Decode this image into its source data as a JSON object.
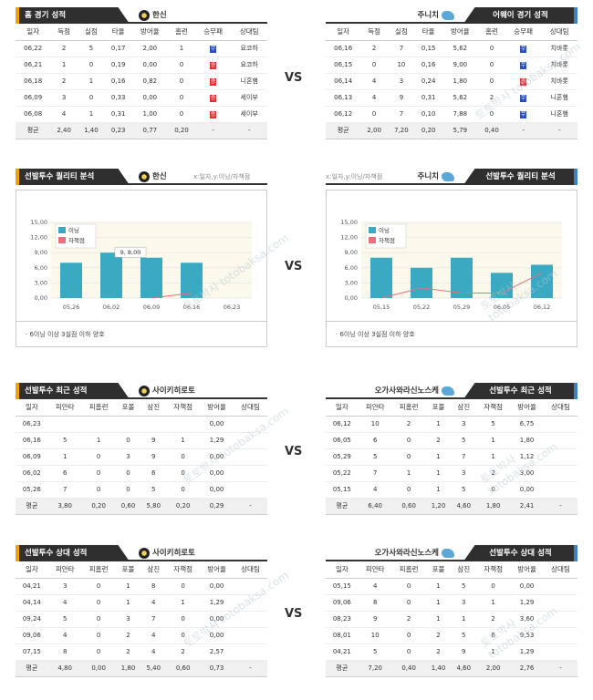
{
  "vs_label": "VS",
  "home_record": {
    "title": "홈 경기 성적",
    "team": "한신",
    "headers": [
      "일자",
      "득점",
      "실점",
      "타율",
      "방어율",
      "홈런",
      "승무패",
      "상대팀"
    ],
    "rows": [
      [
        "06,22",
        "2",
        "5",
        "0,17",
        "2,00",
        "1",
        "무",
        "요코하"
      ],
      [
        "06,21",
        "1",
        "0",
        "0,19",
        "0,00",
        "0",
        "승",
        "요코하"
      ],
      [
        "06,18",
        "2",
        "1",
        "0,16",
        "0,82",
        "0",
        "승",
        "니혼햄"
      ],
      [
        "06,09",
        "3",
        "0",
        "0,33",
        "0,00",
        "0",
        "승",
        "세이부"
      ],
      [
        "06,08",
        "4",
        "1",
        "0,31",
        "1,00",
        "0",
        "승",
        "세이부"
      ]
    ],
    "avg": [
      "평균",
      "2,40",
      "1,40",
      "0,23",
      "0,77",
      "0,20",
      "-",
      "-"
    ]
  },
  "away_record": {
    "title": "어웨이 경기 성적",
    "team": "주니치",
    "headers": [
      "일자",
      "득점",
      "실점",
      "타율",
      "방어율",
      "홈런",
      "승무패",
      "상대팀"
    ],
    "rows": [
      [
        "06,16",
        "2",
        "7",
        "0,15",
        "5,62",
        "0",
        "무",
        "치바롯"
      ],
      [
        "06,15",
        "0",
        "10",
        "0,16",
        "9,00",
        "0",
        "무",
        "치바롯"
      ],
      [
        "06,14",
        "4",
        "3",
        "0,24",
        "1,80",
        "0",
        "승",
        "치바롯"
      ],
      [
        "06,13",
        "4",
        "9",
        "0,31",
        "5,62",
        "2",
        "무",
        "니혼햄"
      ],
      [
        "06,12",
        "0",
        "7",
        "0,10",
        "7,88",
        "0",
        "무",
        "니혼햄"
      ]
    ],
    "avg": [
      "평균",
      "2,00",
      "7,20",
      "0,20",
      "5,79",
      "0,40",
      "-",
      "-"
    ]
  },
  "quality_left": {
    "title": "선발투수 퀄리티 분석",
    "team": "한신",
    "axis_note": "x:일자,y:이닝/자책점",
    "note": "6이닝 이상 3실점 이하 양호"
  },
  "quality_right": {
    "title": "선발투수 퀄리티 분석",
    "team": "주니치",
    "axis_note": "x:일자,y:이닝/자책점",
    "note": "6이닝 이상 3실점 이하 양호"
  },
  "chart_data": [
    {
      "type": "bar",
      "categories": [
        "05,26",
        "06,02",
        "06,09",
        "06,16",
        "06,23"
      ],
      "series": [
        {
          "name": "이닝",
          "values": [
            7,
            9,
            8,
            7,
            null
          ],
          "color": "#3aa9c2"
        },
        {
          "name": "자책점",
          "values": [
            null,
            null,
            0,
            1,
            null
          ],
          "color": "#e8707a",
          "kind": "line"
        }
      ],
      "ylim": [
        0,
        15
      ],
      "yticks": [
        "0,00",
        "3,00",
        "6,00",
        "9,00",
        "12,00",
        "15,00"
      ],
      "annotation": "9, 8,00"
    },
    {
      "type": "bar",
      "categories": [
        "05,15",
        "05,22",
        "05,29",
        "06,05",
        "06,12"
      ],
      "series": [
        {
          "name": "이닝",
          "values": [
            8,
            6,
            8,
            5,
            6.6
          ],
          "color": "#3aa9c2"
        },
        {
          "name": "자책점",
          "values": [
            0,
            2,
            1,
            1,
            5
          ],
          "color": "#e8707a",
          "kind": "line"
        }
      ],
      "ylim": [
        0,
        15
      ],
      "yticks": [
        "0,00",
        "3,00",
        "6,00",
        "9,00",
        "12,00",
        "15,00"
      ]
    }
  ],
  "recent_left": {
    "title": "선발투수 최근 성적",
    "team": "사이키히로토",
    "headers": [
      "일자",
      "피안타",
      "피홈런",
      "포볼",
      "삼진",
      "자책점",
      "방어율",
      "상대팀"
    ],
    "rows": [
      [
        "06,23",
        "",
        "",
        "",
        "",
        "",
        "0,00",
        ""
      ],
      [
        "06,16",
        "5",
        "1",
        "0",
        "9",
        "1",
        "1,29",
        ""
      ],
      [
        "06,09",
        "1",
        "0",
        "3",
        "9",
        "0",
        "0,00",
        ""
      ],
      [
        "06,02",
        "6",
        "0",
        "0",
        "6",
        "0",
        "0,00",
        ""
      ],
      [
        "05,26",
        "7",
        "0",
        "0",
        "5",
        "0",
        "0,00",
        ""
      ]
    ],
    "avg": [
      "평균",
      "3,80",
      "0,20",
      "0,60",
      "5,80",
      "0,20",
      "0,29",
      "-"
    ]
  },
  "recent_right": {
    "title": "선발투수 최근 성적",
    "team": "오가사와라신노스케",
    "headers": [
      "일자",
      "피안타",
      "피홈런",
      "포볼",
      "삼진",
      "자책점",
      "방어율",
      "상대팀"
    ],
    "rows": [
      [
        "06,12",
        "10",
        "2",
        "1",
        "3",
        "5",
        "6,75",
        ""
      ],
      [
        "06,05",
        "6",
        "0",
        "2",
        "5",
        "1",
        "1,80",
        ""
      ],
      [
        "05,29",
        "5",
        "0",
        "1",
        "7",
        "1",
        "1,12",
        ""
      ],
      [
        "05,22",
        "7",
        "1",
        "1",
        "3",
        "2",
        "3,00",
        ""
      ],
      [
        "05,15",
        "4",
        "0",
        "1",
        "5",
        "0",
        "0,00",
        ""
      ]
    ],
    "avg": [
      "평균",
      "6,40",
      "0,60",
      "1,20",
      "4,60",
      "1,80",
      "2,41",
      "-"
    ]
  },
  "opp_left": {
    "title": "선발투수 상대 성적",
    "team": "사이키히로토",
    "headers": [
      "일자",
      "피안타",
      "피홈런",
      "포볼",
      "삼진",
      "자책점",
      "방어율",
      "상대팀"
    ],
    "rows": [
      [
        "04,21",
        "3",
        "0",
        "1",
        "8",
        "0",
        "0,00",
        ""
      ],
      [
        "04,14",
        "4",
        "0",
        "1",
        "4",
        "1",
        "1,29",
        ""
      ],
      [
        "09,24",
        "5",
        "0",
        "3",
        "7",
        "0",
        "0,00",
        ""
      ],
      [
        "09,06",
        "4",
        "0",
        "2",
        "4",
        "0",
        "0,00",
        ""
      ],
      [
        "07,15",
        "8",
        "0",
        "2",
        "4",
        "2",
        "2,57",
        ""
      ]
    ],
    "avg": [
      "평균",
      "4,80",
      "0,00",
      "1,80",
      "5,40",
      "0,60",
      "0,73",
      "-"
    ]
  },
  "opp_right": {
    "title": "선발투수 상대 성적",
    "team": "오가사와라신노스케",
    "headers": [
      "일자",
      "피안타",
      "피홈런",
      "포볼",
      "삼진",
      "자책점",
      "방어율",
      "상대팀"
    ],
    "rows": [
      [
        "05,15",
        "4",
        "0",
        "1",
        "5",
        "0",
        "0,00",
        ""
      ],
      [
        "09,06",
        "8",
        "0",
        "1",
        "3",
        "1",
        "1,29",
        ""
      ],
      [
        "08,23",
        "9",
        "2",
        "1",
        "1",
        "2",
        "3,60",
        ""
      ],
      [
        "08,01",
        "10",
        "0",
        "2",
        "5",
        "6",
        "9,53",
        ""
      ],
      [
        "04,21",
        "5",
        "0",
        "2",
        "9",
        "1",
        "1,29",
        ""
      ]
    ],
    "avg": [
      "평균",
      "7,20",
      "0,40",
      "1,40",
      "4,60",
      "2,00",
      "2,76",
      "-"
    ]
  },
  "watermark": "토토박사 totobaksa.com"
}
